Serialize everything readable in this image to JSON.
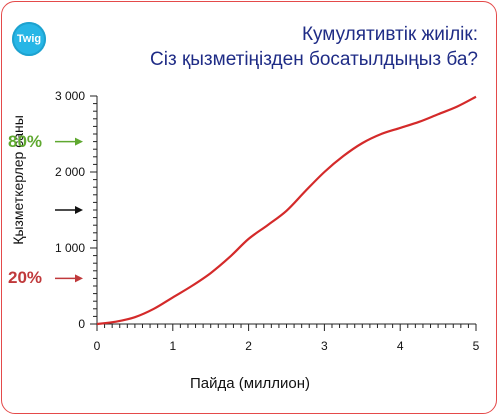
{
  "logo": {
    "text": "Twig"
  },
  "title": {
    "line1": "Кумулятивтік жиілік:",
    "line2": "Сіз қызметіңізден босатылдыңыз  ба?"
  },
  "annotations": [
    {
      "label": "80%",
      "color": "#5fa830",
      "y": 2400
    },
    {
      "label": "",
      "color": "#111111",
      "y": 1500
    },
    {
      "label": "20%",
      "color": "#c0393b",
      "y": 600
    }
  ],
  "colors": {
    "accent": "#e44a4a",
    "line": "#d42a2a",
    "title": "#1f2c86",
    "logo": "#27b6e6"
  },
  "chart_data": {
    "type": "line",
    "xlabel": "Пайда (миллион)",
    "ylabel": "Қызметкерлер саны",
    "xlim": [
      0,
      5
    ],
    "ylim": [
      0,
      3000
    ],
    "x_ticks": [
      "0",
      "1",
      "2",
      "3",
      "4",
      "5"
    ],
    "y_ticks": [
      "0",
      "1 000",
      "2 000",
      "3 000"
    ],
    "series": [
      {
        "x": [
          0,
          0.25,
          0.5,
          0.75,
          1,
          1.25,
          1.5,
          1.75,
          2,
          2.25,
          2.5,
          2.75,
          3,
          3.25,
          3.5,
          3.75,
          4,
          4.25,
          4.5,
          4.75,
          5
        ],
        "values": [
          0,
          30,
          90,
          200,
          350,
          500,
          670,
          880,
          1120,
          1300,
          1490,
          1750,
          2000,
          2210,
          2380,
          2500,
          2580,
          2660,
          2760,
          2860,
          2990
        ]
      }
    ]
  }
}
